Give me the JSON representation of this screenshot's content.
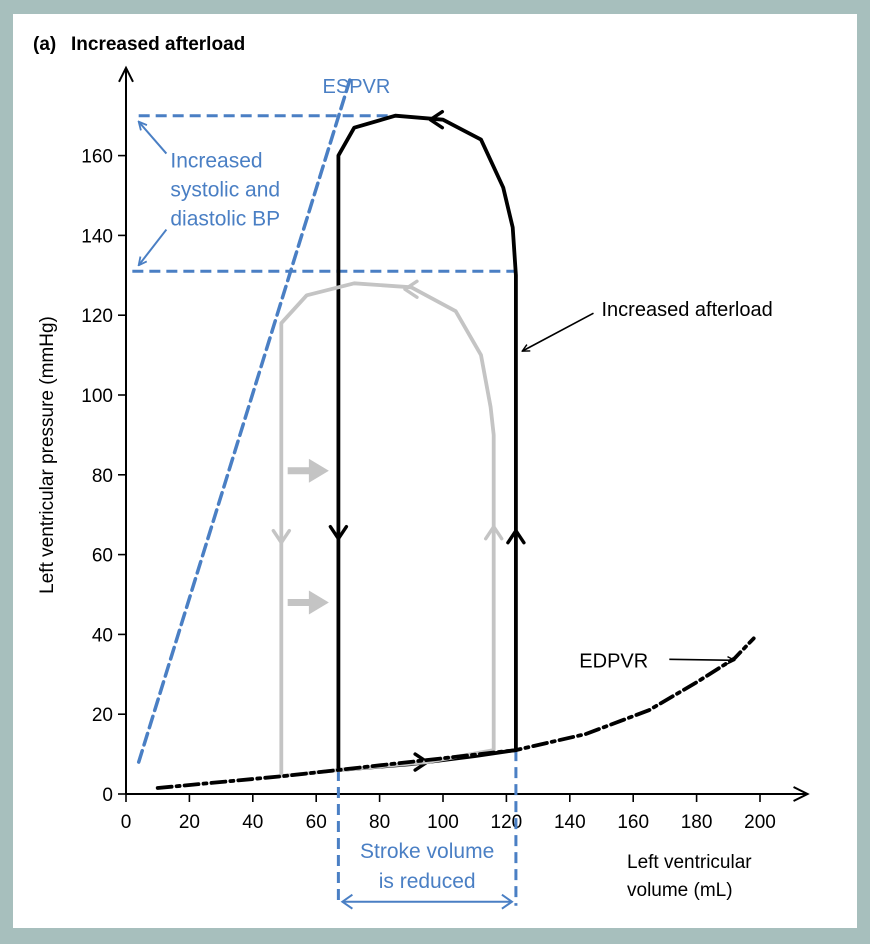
{
  "panel_label": "(a)",
  "chart_data": {
    "type": "line",
    "title": "Increased afterload",
    "xlabel_line1": "Left ventricular",
    "xlabel_line2": "volume (mL)",
    "ylabel": "Left ventricular pressure (mmHg)",
    "xlim": [
      0,
      215
    ],
    "ylim": [
      0,
      180
    ],
    "x_ticks": [
      0,
      20,
      40,
      60,
      80,
      100,
      120,
      140,
      160,
      180,
      200
    ],
    "y_ticks": [
      0,
      20,
      40,
      60,
      80,
      100,
      120,
      140,
      160
    ],
    "colors": {
      "loop": "#000000",
      "normal_loop": "#c4c4c4",
      "annotation": "#4a7fc4"
    },
    "series": [
      {
        "name": "Increased afterload",
        "color": "#000000",
        "points": [
          [
            67,
            6
          ],
          [
            67,
            160
          ],
          [
            72,
            167
          ],
          [
            85,
            170
          ],
          [
            100,
            169
          ],
          [
            112,
            164
          ],
          [
            119,
            152
          ],
          [
            122,
            142
          ],
          [
            123,
            130
          ],
          [
            123,
            11
          ],
          [
            110,
            9.5
          ],
          [
            90,
            7.5
          ],
          [
            67,
            6
          ]
        ],
        "arrows": [
          {
            "at": [
              67,
              64
            ],
            "dir": "down"
          },
          {
            "at": [
              123,
              66
            ],
            "dir": "up"
          },
          {
            "at": [
              96,
              169
            ],
            "dir": "left"
          },
          {
            "at": [
              95,
              8
            ],
            "dir": "right"
          }
        ]
      },
      {
        "color": "#c4c4c4",
        "points": [
          [
            49,
            4.5
          ],
          [
            49,
            118
          ],
          [
            57,
            125
          ],
          [
            72,
            128
          ],
          [
            90,
            127
          ],
          [
            104,
            121
          ],
          [
            112,
            110
          ],
          [
            115,
            97
          ],
          [
            116,
            90
          ],
          [
            116,
            11
          ],
          [
            95,
            8
          ],
          [
            67,
            6
          ],
          [
            49,
            4.5
          ]
        ],
        "arrows": [
          {
            "at": [
              49,
              63
            ],
            "dir": "down"
          },
          {
            "at": [
              116,
              67
            ],
            "dir": "up"
          },
          {
            "at": [
              88,
              126.5
            ],
            "dir": "left"
          }
        ],
        "shift_arrows": [
          {
            "from": [
              51,
              81
            ],
            "to": [
              64,
              81
            ]
          },
          {
            "from": [
              51,
              48
            ],
            "to": [
              64,
              48
            ]
          }
        ]
      },
      {
        "name": "EDPVR",
        "color": "#000000",
        "dashed": true,
        "points": [
          [
            10,
            1.5
          ],
          [
            30,
            3
          ],
          [
            50,
            4.5
          ],
          [
            123,
            11
          ],
          [
            145,
            15
          ],
          [
            165,
            21
          ],
          [
            180,
            28
          ],
          [
            192,
            34
          ],
          [
            198,
            39
          ]
        ]
      },
      {
        "name": "ESPVR",
        "color": "#4a7fc4",
        "dashed": true,
        "points": [
          [
            4,
            8
          ],
          [
            71,
            180
          ]
        ]
      }
    ],
    "reference_lines": [
      {
        "type": "h",
        "y": 170,
        "x_from": 4,
        "x_to": 86
      },
      {
        "type": "h",
        "y": 131,
        "x_from": 2,
        "x_to": 123
      },
      {
        "type": "v",
        "x": 67,
        "y_from": 6,
        "y_to": -28
      },
      {
        "type": "v",
        "x": 123,
        "y_from": 11,
        "y_to": -28
      }
    ],
    "annotations": [
      {
        "key": "increased_afterload",
        "text": "Increased afterload",
        "at": [
          150,
          121.5
        ],
        "arrow_to": [
          125,
          111
        ]
      },
      {
        "key": "edpvr",
        "text": "EDPVR",
        "at": [
          143,
          33.5
        ],
        "arrow_to": [
          192,
          34
        ]
      },
      {
        "key": "espvr",
        "text": "ESPVR",
        "at": [
          62,
          177.5
        ]
      },
      {
        "key": "bp",
        "text_lines": [
          "Increased",
          "systolic and",
          "diastolic BP"
        ],
        "at": [
          14,
          157
        ]
      },
      {
        "key": "sv",
        "text_lines": [
          "Stroke volume",
          "is reduced"
        ],
        "at": [
          95,
          -16
        ]
      }
    ]
  }
}
